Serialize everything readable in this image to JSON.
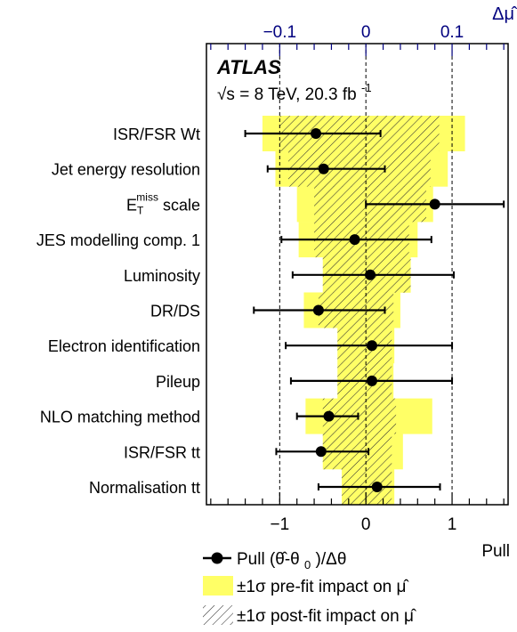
{
  "chart_data": {
    "type": "scatter",
    "experiment": "ATLAS",
    "energy_label": "√s = 8 TeV, 20.3 fb",
    "energy_superscript": "-1",
    "xlabel": "Pull",
    "top_axis_label": "Δμ̂",
    "xlim": [
      -1.85,
      1.65
    ],
    "x_ticks": [
      -1,
      0,
      1
    ],
    "x_tick_labels": [
      "−1",
      "0",
      "1"
    ],
    "top_ticks": [
      -0.1,
      0,
      0.1
    ],
    "top_tick_labels": [
      "−0.1",
      "0",
      "0.1"
    ],
    "top_scale": 0.1,
    "dashed_lines_at": [
      -1,
      0,
      1
    ],
    "nuisance_parameters": [
      {
        "label": "ISR/FSR Wt",
        "pull": -0.58,
        "err_lo": 0.82,
        "err_hi": 0.75,
        "prefit": [
          -0.12,
          0.115
        ],
        "postfit": [
          -0.1,
          0.085
        ]
      },
      {
        "label": "Jet energy resolution",
        "pull": -0.49,
        "err_lo": 0.65,
        "err_hi": 0.71,
        "prefit": [
          -0.105,
          0.095
        ],
        "postfit": [
          -0.09,
          0.075
        ]
      },
      {
        "label": "E",
        "label_sub": "T",
        "label_sup": "miss",
        "label_suffix": " scale",
        "pull": 0.8,
        "err_lo": 0.8,
        "err_hi": 0.8,
        "prefit": [
          -0.08,
          0.078
        ],
        "postfit": [
          -0.06,
          0.07
        ]
      },
      {
        "label": "JES modelling comp. 1",
        "pull": -0.13,
        "err_lo": 0.85,
        "err_hi": 0.89,
        "prefit": [
          -0.078,
          0.06
        ],
        "postfit": [
          -0.06,
          0.05
        ]
      },
      {
        "label": "Luminosity",
        "pull": 0.05,
        "err_lo": 0.9,
        "err_hi": 0.97,
        "prefit": [
          -0.05,
          0.052
        ],
        "postfit": [
          -0.05,
          0.052
        ]
      },
      {
        "label": "DR/DS",
        "pull": -0.55,
        "err_lo": 0.75,
        "err_hi": 0.77,
        "prefit": [
          -0.072,
          0.04
        ],
        "postfit": [
          -0.055,
          0.032
        ]
      },
      {
        "label": "Electron identification",
        "pull": 0.07,
        "err_lo": 1.0,
        "err_hi": 0.93,
        "prefit": [
          -0.033,
          0.033
        ],
        "postfit": [
          -0.033,
          0.03
        ]
      },
      {
        "label": "Pileup",
        "pull": 0.07,
        "err_lo": 0.94,
        "err_hi": 0.93,
        "prefit": [
          -0.033,
          0.032
        ],
        "postfit": [
          -0.033,
          0.03
        ]
      },
      {
        "label": "NLO matching method",
        "pull": -0.43,
        "err_lo": 0.37,
        "err_hi": 0.34,
        "prefit": [
          -0.07,
          0.077
        ],
        "postfit": [
          -0.05,
          0.035
        ]
      },
      {
        "label": "ISR/FSR tt",
        "pull": -0.52,
        "err_lo": 0.52,
        "err_hi": 0.55,
        "prefit": [
          -0.05,
          0.043
        ],
        "postfit": [
          -0.05,
          0.03
        ]
      },
      {
        "label": "Normalisation tt",
        "pull": 0.13,
        "err_lo": 0.68,
        "err_hi": 0.73,
        "prefit": [
          -0.028,
          0.033
        ],
        "postfit": [
          -0.028,
          0.03
        ]
      }
    ],
    "legend": {
      "pull": "Pull (θ̂-θ",
      "pull_sub": "0",
      "pull_tail": ")/Δθ",
      "prefit": "±1σ pre-fit impact on μ̂",
      "postfit": "±1σ post-fit impact on μ̂"
    },
    "colors": {
      "prefit_fill": "#ffff66",
      "hatch": "#333333",
      "top_axis": "#00007f",
      "points": "#000000"
    }
  }
}
